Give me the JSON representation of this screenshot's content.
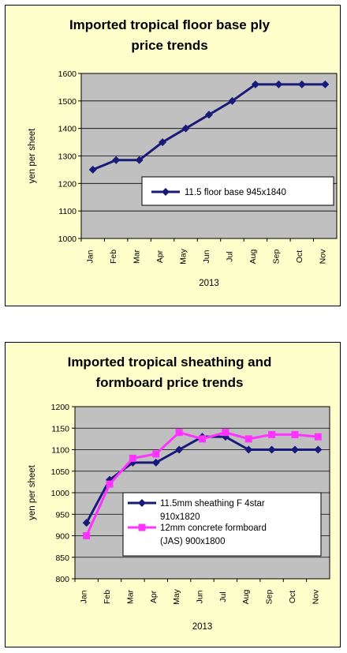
{
  "chart_data": [
    {
      "type": "line",
      "title_lines": [
        "Imported tropical floor base ply",
        "price trends"
      ],
      "xlabel": "2013",
      "ylabel": "yen per sheet",
      "categories": [
        "Jan",
        "Feb",
        "Mar",
        "Apr",
        "May",
        "Jun",
        "Jul",
        "Aug",
        "Sep",
        "Oct",
        "Nov"
      ],
      "ylim": [
        1000,
        1600
      ],
      "yticks": [
        1000,
        1100,
        1200,
        1300,
        1400,
        1500,
        1600
      ],
      "grid": true,
      "legend_position": "right",
      "series": [
        {
          "name": "11.5 floor base 945x1840",
          "marker": "diamond",
          "color": "#1a1a7a",
          "values": [
            1250,
            1285,
            1285,
            1350,
            1400,
            1450,
            1500,
            1560,
            1560,
            1560,
            1560
          ]
        }
      ]
    },
    {
      "type": "line",
      "title_lines": [
        "Imported tropical sheathing and",
        "formboard price trends"
      ],
      "xlabel": "2013",
      "ylabel": "yen per sheet",
      "categories": [
        "Jan",
        "Feb",
        "Mar",
        "Apr",
        "May",
        "Jun",
        "Jul",
        "Aug",
        "Sep",
        "Oct",
        "Nov"
      ],
      "ylim": [
        800,
        1200
      ],
      "yticks": [
        800,
        850,
        900,
        950,
        1000,
        1050,
        1100,
        1150,
        1200
      ],
      "grid": true,
      "legend_position": "bottom-right",
      "series": [
        {
          "name_lines": [
            "11.5mm sheathing F 4star",
            "910x1820"
          ],
          "marker": "diamond",
          "color": "#1a1a7a",
          "values": [
            930,
            1030,
            1070,
            1070,
            1100,
            1130,
            1130,
            1100,
            1100,
            1100,
            1100
          ]
        },
        {
          "name_lines": [
            "12mm concrete formboard",
            "(JAS) 900x1800"
          ],
          "marker": "square",
          "color": "#ff33ff",
          "values": [
            900,
            1020,
            1080,
            1090,
            1140,
            1125,
            1140,
            1125,
            1135,
            1135,
            1130
          ]
        }
      ]
    }
  ],
  "colors": {
    "panel_background": "#ffffcc",
    "plot_background": "#c0c0c0",
    "grid": "#000000"
  }
}
